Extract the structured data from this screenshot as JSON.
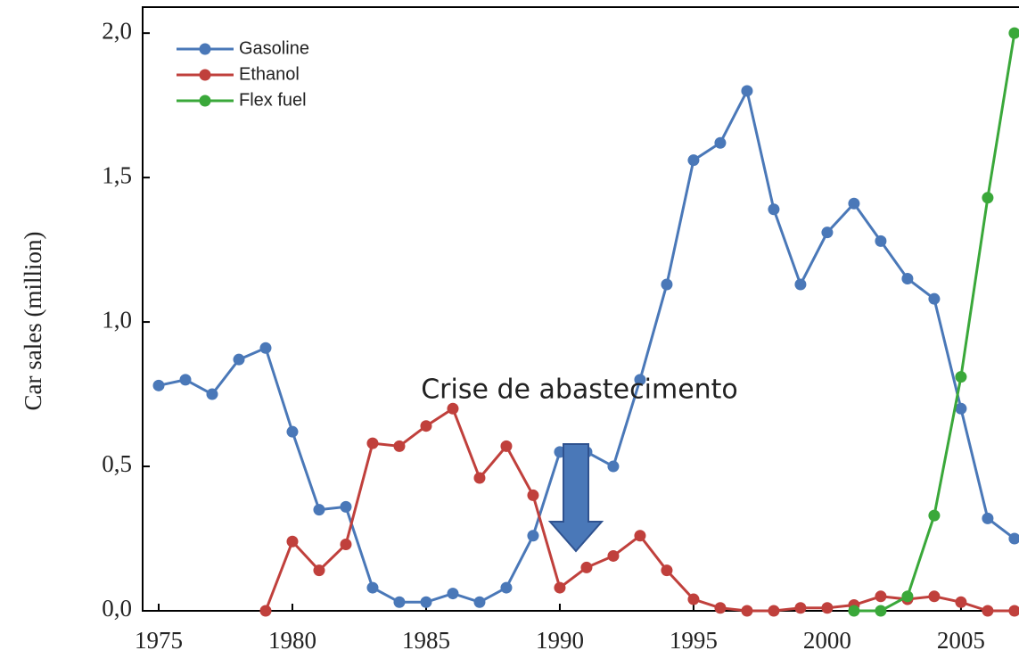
{
  "chart_data": {
    "type": "line",
    "y_label": "Car sales (million)",
    "annotation": "Crise de abastecimento",
    "x": [
      1975,
      1976,
      1977,
      1978,
      1979,
      1980,
      1981,
      1982,
      1983,
      1984,
      1985,
      1986,
      1987,
      1988,
      1989,
      1990,
      1991,
      1992,
      1993,
      1994,
      1995,
      1996,
      1997,
      1998,
      1999,
      2000,
      2001,
      2002,
      2003,
      2004,
      2005,
      2006,
      2007
    ],
    "series": [
      {
        "name": "Gasoline",
        "color": "#4a78b8",
        "values": [
          0.78,
          0.8,
          0.75,
          0.87,
          0.91,
          0.62,
          0.35,
          0.36,
          0.08,
          0.03,
          0.03,
          0.06,
          0.03,
          0.08,
          0.26,
          0.55,
          0.55,
          0.5,
          0.8,
          1.13,
          1.56,
          1.62,
          1.8,
          1.39,
          1.13,
          1.31,
          1.41,
          1.28,
          1.15,
          1.08,
          0.7,
          0.32,
          0.25
        ]
      },
      {
        "name": "Ethanol",
        "color": "#c0403c",
        "values": [
          null,
          null,
          null,
          null,
          0,
          0.24,
          0.14,
          0.23,
          0.58,
          0.57,
          0.64,
          0.7,
          0.46,
          0.57,
          0.4,
          0.08,
          0.15,
          0.19,
          0.26,
          0.14,
          0.04,
          0.01,
          0,
          0,
          0.01,
          0.01,
          0.02,
          0.05,
          0.04,
          0.05,
          0.03,
          0,
          0
        ]
      },
      {
        "name": "Flex fuel",
        "color": "#3aa83a",
        "values": [
          null,
          null,
          null,
          null,
          null,
          null,
          null,
          null,
          null,
          null,
          null,
          null,
          null,
          null,
          null,
          null,
          null,
          null,
          null,
          null,
          null,
          null,
          null,
          null,
          null,
          null,
          0,
          0,
          0.05,
          0.33,
          0.81,
          1.43,
          2.0
        ]
      }
    ],
    "xlim": [
      1974.4,
      2007.17
    ],
    "xticks": [
      1975,
      1980,
      1985,
      1990,
      1995,
      2000,
      2005
    ],
    "ylim": [
      0,
      2.09
    ],
    "yticks": [
      {
        "value": 0,
        "label": "0,0"
      },
      {
        "value": 0.5,
        "label": "0,5"
      },
      {
        "value": 1,
        "label": "1,0"
      },
      {
        "value": 1.5,
        "label": "1,5"
      },
      {
        "value": 2,
        "label": "2,0"
      }
    ],
    "legend": "upper left"
  }
}
